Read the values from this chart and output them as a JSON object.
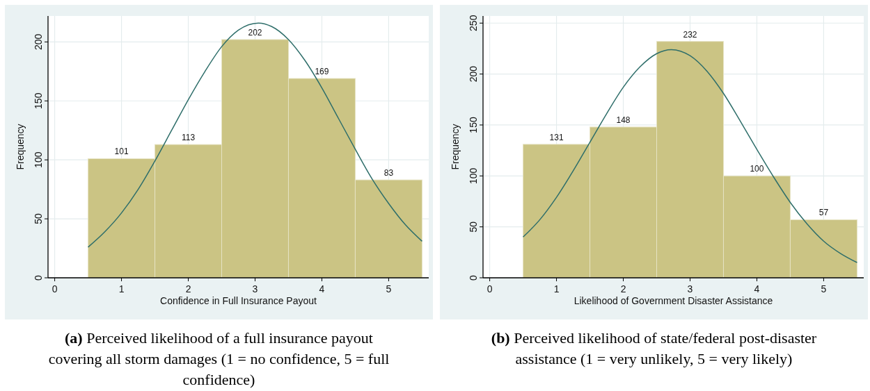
{
  "chart_data": [
    {
      "type": "histogram",
      "title": "(a) Perceived likelihood of a full insurance payout covering all storm damages (1 = no confidence, 5 = full confidence)",
      "xlabel": "Confidence in Full Insurance Payout",
      "ylabel": "Frequency",
      "bins": [
        0.5,
        1.5,
        2.5,
        3.5,
        4.5,
        5.5
      ],
      "xlim": [
        -0.1,
        5.6
      ],
      "xticks": [
        0,
        1,
        2,
        3,
        4,
        5
      ],
      "ylim": [
        0,
        222
      ],
      "yticks": [
        0,
        50,
        100,
        150,
        200
      ],
      "grid": true,
      "series": [
        {
          "color": "#cbc484",
          "values": [
            101,
            113,
            202,
            169,
            83
          ],
          "value_labels": [
            "101",
            "113",
            "202",
            "169",
            "83"
          ]
        },
        {
          "type": "line",
          "color": "#2e6e6a",
          "x": [
            0.5,
            0.75,
            1,
            1.25,
            1.5,
            1.75,
            2,
            2.25,
            2.5,
            2.75,
            3.05,
            3.25,
            3.5,
            3.75,
            4,
            4.25,
            4.5,
            4.75,
            5,
            5.25,
            5.5
          ],
          "values": [
            26,
            39,
            55,
            75,
            99,
            125,
            151,
            175,
            196,
            210,
            216,
            213,
            202,
            184,
            161,
            135,
            109,
            84,
            63,
            45,
            31
          ]
        }
      ]
    },
    {
      "type": "histogram",
      "title": "(b) Perceived likelihood of state/federal post-disaster assistance (1 = very unlikely, 5 = very likely)",
      "xlabel": "Likelihood of Government Disaster Assistance",
      "ylabel": "Frequency",
      "bins": [
        0.5,
        1.5,
        2.5,
        3.5,
        4.5,
        5.5
      ],
      "xlim": [
        -0.1,
        5.6
      ],
      "xticks": [
        0,
        1,
        2,
        3,
        4,
        5
      ],
      "ylim": [
        0,
        257
      ],
      "yticks": [
        0,
        50,
        100,
        150,
        200,
        250
      ],
      "grid": true,
      "series": [
        {
          "color": "#cbc484",
          "values": [
            131,
            148,
            232,
            100,
            57
          ],
          "value_labels": [
            "131",
            "148",
            "232",
            "100",
            "57"
          ]
        },
        {
          "type": "line",
          "color": "#2e6e6a",
          "x": [
            0.5,
            0.75,
            1,
            1.25,
            1.5,
            1.75,
            2,
            2.25,
            2.5,
            2.72,
            3,
            3.25,
            3.5,
            3.75,
            4,
            4.25,
            4.5,
            4.75,
            5,
            5.25,
            5.5
          ],
          "values": [
            40,
            57,
            79,
            105,
            133,
            161,
            187,
            207,
            220,
            224,
            218,
            203,
            181,
            154,
            126,
            99,
            74,
            53,
            36,
            24,
            15
          ]
        }
      ]
    }
  ]
}
